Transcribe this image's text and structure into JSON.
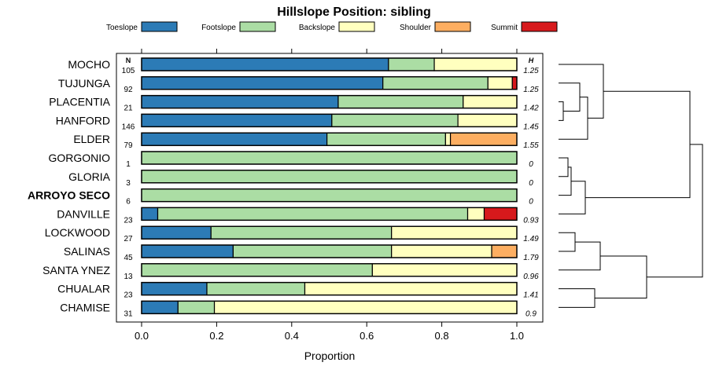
{
  "chart_data": {
    "type": "bar",
    "stacked": true,
    "orientation": "horizontal",
    "title": "Hillslope Position: sibling",
    "xlabel": "Proportion",
    "ylabel": "",
    "xlim": [
      0,
      1
    ],
    "x_ticks": [
      "0.0",
      "0.2",
      "0.4",
      "0.6",
      "0.8",
      "1.0"
    ],
    "n_header": "N",
    "h_header": "H",
    "legend": [
      {
        "name": "Toeslope",
        "color": "#2c7bb6"
      },
      {
        "name": "Footslope",
        "color": "#abdda4"
      },
      {
        "name": "Backslope",
        "color": "#ffffbf"
      },
      {
        "name": "Shoulder",
        "color": "#fdae61"
      },
      {
        "name": "Summit",
        "color": "#d7191c"
      }
    ],
    "rows": [
      {
        "label": "MOCHO",
        "bold": false,
        "n": "105",
        "h": "1.25",
        "values": [
          0.658,
          0.122,
          0.22,
          0,
          0
        ]
      },
      {
        "label": "TUJUNGA",
        "bold": false,
        "n": "92",
        "h": "1.25",
        "values": [
          0.643,
          0.28,
          0.065,
          0,
          0.012
        ]
      },
      {
        "label": "PLACENTIA",
        "bold": false,
        "n": "21",
        "h": "1.42",
        "values": [
          0.524,
          0.333,
          0.143,
          0,
          0
        ]
      },
      {
        "label": "HANFORD",
        "bold": false,
        "n": "146",
        "h": "1.45",
        "values": [
          0.507,
          0.336,
          0.157,
          0,
          0
        ]
      },
      {
        "label": "ELDER",
        "bold": false,
        "n": "79",
        "h": "1.55",
        "values": [
          0.494,
          0.316,
          0.013,
          0.177,
          0
        ]
      },
      {
        "label": "GORGONIO",
        "bold": false,
        "n": "1",
        "h": "0",
        "values": [
          0,
          1,
          0,
          0,
          0
        ]
      },
      {
        "label": "GLORIA",
        "bold": false,
        "n": "3",
        "h": "0",
        "values": [
          0,
          1,
          0,
          0,
          0
        ]
      },
      {
        "label": "ARROYO SECO",
        "bold": true,
        "n": "6",
        "h": "0",
        "values": [
          0,
          1,
          0,
          0,
          0
        ]
      },
      {
        "label": "DANVILLE",
        "bold": false,
        "n": "23",
        "h": "0.93",
        "values": [
          0.043,
          0.826,
          0.044,
          0,
          0.087
        ]
      },
      {
        "label": "LOCKWOOD",
        "bold": false,
        "n": "27",
        "h": "1.49",
        "values": [
          0.185,
          0.481,
          0.334,
          0,
          0
        ]
      },
      {
        "label": "SALINAS",
        "bold": false,
        "n": "45",
        "h": "1.79",
        "values": [
          0.244,
          0.422,
          0.267,
          0.067,
          0
        ]
      },
      {
        "label": "SANTA YNEZ",
        "bold": false,
        "n": "13",
        "h": "0.96",
        "values": [
          0,
          0.615,
          0.385,
          0,
          0
        ]
      },
      {
        "label": "CHUALAR",
        "bold": false,
        "n": "23",
        "h": "1.41",
        "values": [
          0.174,
          0.261,
          0.565,
          0,
          0
        ]
      },
      {
        "label": "CHAMISE",
        "bold": false,
        "n": "31",
        "h": "0.9",
        "values": [
          0.097,
          0.097,
          0.806,
          0,
          0
        ]
      }
    ]
  }
}
